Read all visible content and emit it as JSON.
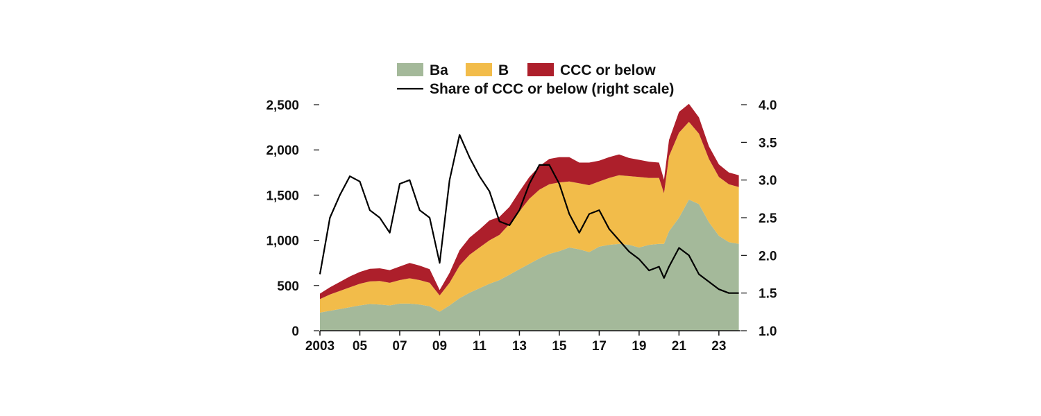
{
  "chart_data": {
    "type": "area",
    "stacked": true,
    "legend": {
      "placement": "top-center",
      "entries": [
        {
          "key": "Ba",
          "label": "Ba"
        },
        {
          "key": "B",
          "label": "B"
        },
        {
          "key": "CCC",
          "label": "CCC or below"
        },
        {
          "key": "share",
          "label": "Share of CCC or below (right scale)"
        }
      ]
    },
    "colors": {
      "Ba": "#a4b99a",
      "B": "#f2bc4a",
      "CCC": "#ad1f2b",
      "share": "#000000"
    },
    "x": [
      "2003-01",
      "2003-07",
      "2004-01",
      "2004-07",
      "2005-01",
      "2005-07",
      "2006-01",
      "2006-07",
      "2007-01",
      "2007-07",
      "2008-01",
      "2008-07",
      "2009-01",
      "2009-07",
      "2010-01",
      "2010-07",
      "2011-01",
      "2011-07",
      "2012-01",
      "2012-07",
      "2013-01",
      "2013-07",
      "2014-01",
      "2014-07",
      "2015-01",
      "2015-07",
      "2016-01",
      "2016-07",
      "2017-01",
      "2017-07",
      "2018-01",
      "2018-07",
      "2019-01",
      "2019-07",
      "2020-01",
      "2020-04",
      "2020-07",
      "2021-01",
      "2021-07",
      "2022-01",
      "2022-07",
      "2023-01",
      "2023-07",
      "2024-01"
    ],
    "series": [
      {
        "name": "Ba",
        "axis": "left",
        "values": [
          200,
          220,
          240,
          260,
          280,
          295,
          290,
          280,
          300,
          300,
          290,
          270,
          210,
          280,
          360,
          420,
          470,
          520,
          560,
          620,
          680,
          740,
          800,
          850,
          880,
          920,
          900,
          870,
          930,
          950,
          960,
          950,
          920,
          950,
          960,
          960,
          1100,
          1250,
          1450,
          1400,
          1200,
          1050,
          980,
          960
        ]
      },
      {
        "name": "B",
        "axis": "left",
        "values": [
          150,
          180,
          200,
          220,
          240,
          250,
          260,
          250,
          260,
          280,
          270,
          260,
          180,
          250,
          360,
          420,
          450,
          480,
          500,
          560,
          640,
          720,
          760,
          770,
          760,
          730,
          730,
          740,
          720,
          740,
          760,
          760,
          780,
          740,
          730,
          560,
          830,
          940,
          860,
          780,
          700,
          650,
          640,
          630
        ]
      },
      {
        "name": "CCC or below",
        "axis": "left",
        "values": [
          60,
          80,
          100,
          120,
          130,
          140,
          140,
          140,
          150,
          170,
          160,
          150,
          60,
          110,
          170,
          190,
          200,
          220,
          200,
          190,
          220,
          240,
          260,
          280,
          280,
          270,
          230,
          250,
          230,
          230,
          230,
          200,
          190,
          180,
          170,
          150,
          180,
          230,
          200,
          180,
          140,
          140,
          130,
          130
        ]
      },
      {
        "name": "Share of CCC or below (right scale)",
        "axis": "right",
        "values": [
          1.75,
          2.5,
          2.8,
          3.05,
          2.98,
          2.6,
          2.5,
          2.3,
          2.95,
          3.0,
          2.6,
          2.5,
          1.9,
          3.0,
          3.6,
          3.3,
          3.05,
          2.85,
          2.45,
          2.4,
          2.6,
          2.95,
          3.2,
          3.2,
          2.95,
          2.55,
          2.3,
          2.55,
          2.6,
          2.35,
          2.2,
          2.05,
          1.95,
          1.8,
          1.85,
          1.7,
          1.85,
          2.1,
          2.0,
          1.75,
          1.65,
          1.55,
          1.5,
          1.5
        ]
      }
    ],
    "y_left": {
      "range": [
        0,
        2500
      ],
      "ticks": [
        0,
        500,
        1000,
        1500,
        2000,
        2500
      ],
      "tick_labels": [
        "0",
        "500",
        "1,000",
        "1,500",
        "2,000",
        "2,500"
      ]
    },
    "y_right": {
      "range": [
        1.0,
        4.0
      ],
      "ticks": [
        1.0,
        1.5,
        2.0,
        2.5,
        3.0,
        3.5,
        4.0
      ],
      "tick_labels": [
        "1.0",
        "1.5",
        "2.0",
        "2.5",
        "3.0",
        "3.5",
        "4.0"
      ]
    },
    "x_axis": {
      "range": [
        "2003-01",
        "2024-02"
      ],
      "ticks": [
        "2003-01",
        "2005-01",
        "2007-01",
        "2009-01",
        "2011-01",
        "2013-01",
        "2015-01",
        "2017-01",
        "2019-01",
        "2021-01",
        "2023-01"
      ],
      "tick_labels": [
        "2003",
        "05",
        "07",
        "09",
        "11",
        "13",
        "15",
        "17",
        "19",
        "21",
        "23"
      ]
    },
    "grid": false
  }
}
